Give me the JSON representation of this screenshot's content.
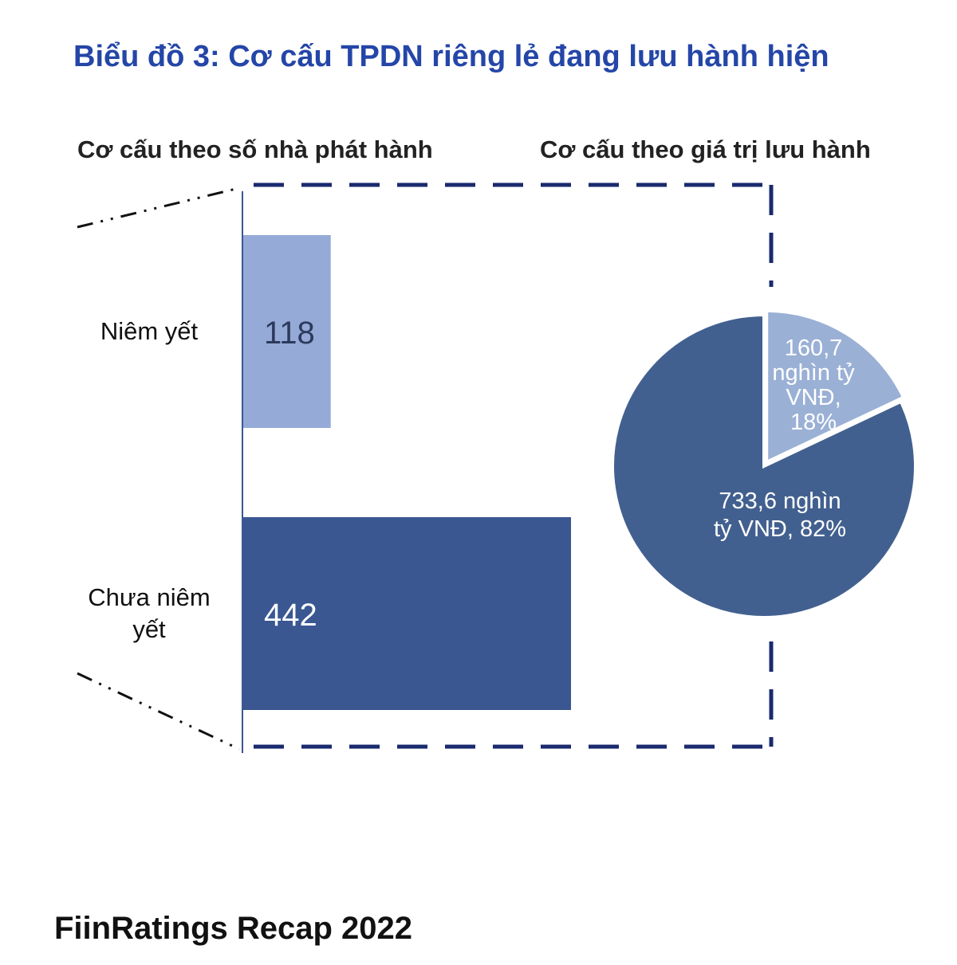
{
  "title": "Biểu đồ 3: Cơ cấu TPDN riêng lẻ đang lưu hành hiện",
  "footer": "FiinRatings Recap 2022",
  "chart_data": [
    {
      "type": "bar",
      "orientation": "horizontal",
      "title": "Cơ cấu theo số nhà phát hành",
      "categories": [
        "Niêm yết",
        "Chưa niêm yết"
      ],
      "category_lines": [
        [
          "Niêm yết"
        ],
        [
          "Chưa niêm",
          "yết"
        ]
      ],
      "values": [
        118,
        442
      ],
      "labels": [
        "118",
        "442"
      ],
      "colors": [
        "#95aad6",
        "#3a5792"
      ],
      "label_colors": [
        "#2b3a5c",
        "#ffffff"
      ]
    },
    {
      "type": "pie",
      "title": "Cơ cấu theo giá trị lưu hành",
      "slices": [
        {
          "value": 160.7,
          "percent": 18,
          "lines": [
            "160,7",
            "nghìn tỷ",
            "VNĐ,",
            "18%"
          ],
          "color": "#9ab0d5"
        },
        {
          "value": 733.6,
          "percent": 82,
          "lines": [
            "733,6 nghìn",
            "tỷ VNĐ, 82%"
          ],
          "color": "#42608f"
        }
      ],
      "unit": "nghìn tỷ VNĐ"
    }
  ],
  "colors": {
    "title": "#2446a8",
    "frame": "#1a2a6e"
  }
}
